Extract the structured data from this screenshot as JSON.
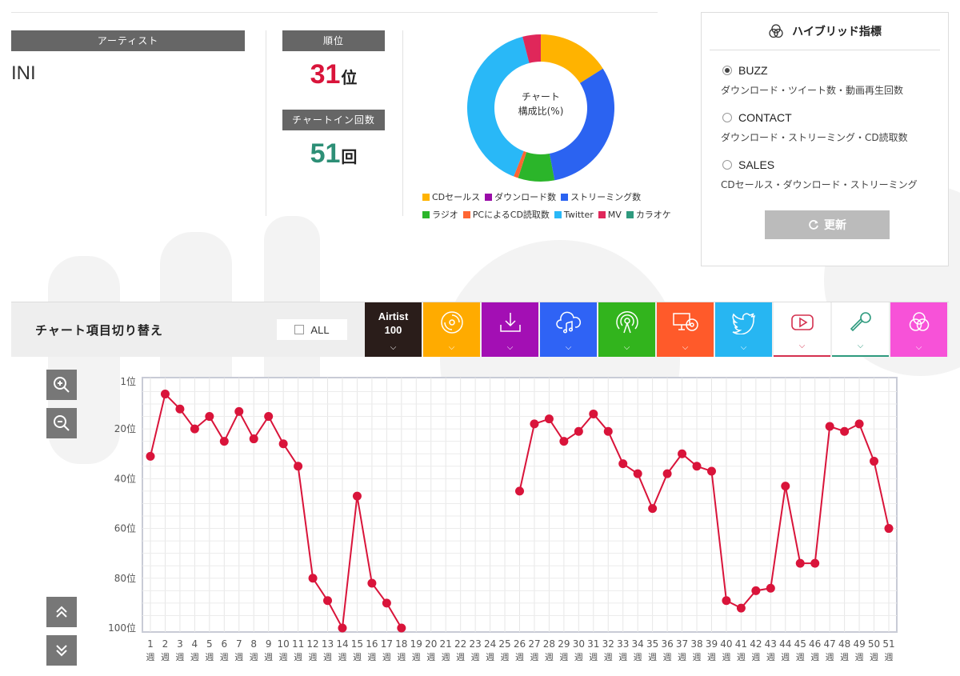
{
  "artist": {
    "header": "アーティスト",
    "name": "INI"
  },
  "rank": {
    "header": "順位",
    "value": "31",
    "unit": "位",
    "color": "#d9143a"
  },
  "chartin": {
    "header": "チャートイン回数",
    "value": "51",
    "unit": "回",
    "color": "#2d8f76"
  },
  "donut": {
    "center_line1": "チャート",
    "center_line2": "構成比(%)",
    "slices": [
      {
        "name": "CDセールス",
        "value": 16,
        "color": "#ffb300"
      },
      {
        "name": "ストリーミング数",
        "value": 31,
        "color": "#2b63f1"
      },
      {
        "name": "ラジオ",
        "value": 8,
        "color": "#2bb52a"
      },
      {
        "name": "PCによるCD読取数",
        "value": 1,
        "color": "#ff6633"
      },
      {
        "name": "Twitter",
        "value": 40,
        "color": "#29b8f7"
      },
      {
        "name": "MV",
        "value": 4,
        "color": "#e0275a"
      }
    ]
  },
  "legend": {
    "row1": [
      {
        "label": "CDセールス",
        "color": "#ffb300"
      },
      {
        "label": "ダウンロード数",
        "color": "#9a0ca8"
      },
      {
        "label": "ストリーミング数",
        "color": "#2b63f1"
      }
    ],
    "row2": [
      {
        "label": "ラジオ",
        "color": "#2bb52a"
      },
      {
        "label": "PCによるCD読取数",
        "color": "#ff6633"
      },
      {
        "label": "Twitter",
        "color": "#29b8f7"
      },
      {
        "label": "MV",
        "color": "#e0275a"
      },
      {
        "label": "カラオケ",
        "color": "#2e9a7e"
      }
    ]
  },
  "hybrid": {
    "title": "ハイブリッド指標",
    "options": [
      {
        "label": "BUZZ",
        "desc": "ダウンロード・ツイート数・動画再生回数",
        "selected": true
      },
      {
        "label": "CONTACT",
        "desc": "ダウンロード・ストリーミング・CD読取数",
        "selected": false
      },
      {
        "label": "SALES",
        "desc": "CDセールス・ダウンロード・ストリーミング",
        "selected": false
      }
    ],
    "refresh_label": "更新"
  },
  "switcher": {
    "title": "チャート項目切り替え",
    "all_label": "ALL",
    "tabs": [
      {
        "id": "airtist",
        "line1": "Airtist",
        "line2": "100",
        "color": "#2a1d1a"
      },
      {
        "id": "cd",
        "icon": "cd-icon",
        "color": "#ffab00"
      },
      {
        "id": "download",
        "icon": "download-icon",
        "color": "#a30fb4"
      },
      {
        "id": "streaming",
        "icon": "cloud-music-icon",
        "color": "#2f63f5"
      },
      {
        "id": "radio",
        "icon": "radio-icon",
        "color": "#32b41d"
      },
      {
        "id": "pc",
        "icon": "pc-cd-icon",
        "color": "#ff5a2a"
      },
      {
        "id": "twitter",
        "icon": "twitter-icon",
        "color": "#27b6f2"
      },
      {
        "id": "mv",
        "icon": "youtube-icon",
        "color": "#ffffff"
      },
      {
        "id": "karaoke",
        "icon": "microphone-icon",
        "color": "#ffffff"
      },
      {
        "id": "hybrid",
        "icon": "venn-icon",
        "color": "#f752d8"
      }
    ]
  },
  "chart_data": {
    "type": "line",
    "y_tick_labels": [
      "1位",
      "20位",
      "40位",
      "60位",
      "80位",
      "100位"
    ],
    "y_ticks": [
      1,
      20,
      40,
      60,
      80,
      100
    ],
    "ylim": [
      1,
      100
    ],
    "y_inverted": true,
    "x_labels": [
      "1",
      "2",
      "3",
      "4",
      "5",
      "6",
      "7",
      "8",
      "9",
      "10",
      "11",
      "12",
      "13",
      "14",
      "15",
      "16",
      "17",
      "18",
      "19",
      "20",
      "21",
      "22",
      "23",
      "24",
      "25",
      "26",
      "27",
      "28",
      "29",
      "30",
      "31",
      "32",
      "33",
      "34",
      "35",
      "36",
      "37",
      "38",
      "39",
      "40",
      "41",
      "42",
      "43",
      "44",
      "45",
      "46",
      "47",
      "48",
      "49",
      "50",
      "51"
    ],
    "x_unit": "週",
    "series": [
      {
        "color": "#d9143a",
        "values": [
          31,
          6,
          12,
          20,
          15,
          25,
          13,
          24,
          15,
          26,
          35,
          80,
          89,
          100,
          47,
          82,
          90,
          100,
          null,
          null,
          null,
          null,
          null,
          null,
          null,
          45,
          18,
          16,
          25,
          21,
          14,
          21,
          34,
          38,
          52,
          38,
          30,
          35,
          37,
          89,
          92,
          85,
          84,
          43,
          74,
          74,
          19,
          21,
          18,
          33,
          60
        ]
      }
    ]
  }
}
